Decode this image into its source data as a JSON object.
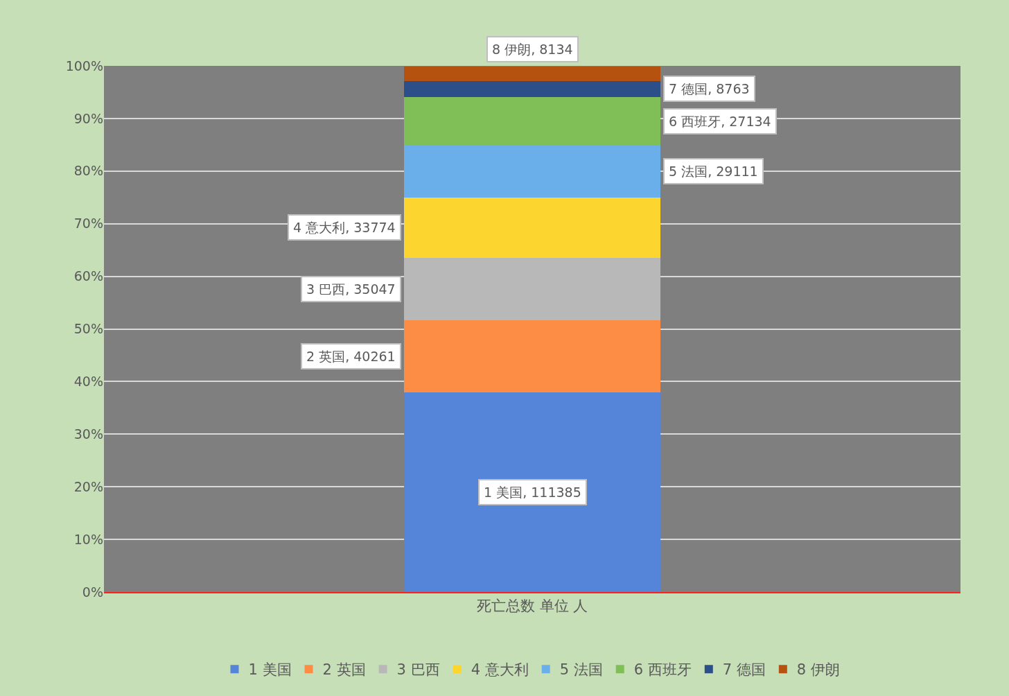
{
  "chart_data": {
    "type": "bar",
    "stacked": true,
    "categories": [
      "死亡总数 单位 人"
    ],
    "series": [
      {
        "name": "1 美国",
        "color": "#5585d8",
        "values": [
          37.9
        ]
      },
      {
        "name": "2 英国",
        "color": "#fd8d45",
        "values": [
          13.7
        ]
      },
      {
        "name": "3 巴西",
        "color": "#b8b8b8",
        "values": [
          11.9
        ]
      },
      {
        "name": "4 意大利",
        "color": "#fdd52f",
        "values": [
          11.5
        ]
      },
      {
        "name": "5 法国",
        "color": "#6aaeea",
        "values": [
          9.9
        ]
      },
      {
        "name": "6 西班牙",
        "color": "#80bf58",
        "values": [
          9.2
        ]
      },
      {
        "name": "7 德国",
        "color": "#2c4f8a",
        "values": [
          3.0
        ]
      },
      {
        "name": "8 伊朗",
        "color": "#b5520f",
        "values": [
          2.8
        ]
      }
    ],
    "annotations": [
      "1 美国, 111385",
      "2 英国, 40261",
      "3 巴西, 35047",
      "4 意大利, 33774",
      "5 法国, 29111",
      "6 西班牙, 27134",
      "7 德国, 8763",
      "8 伊朗, 8134"
    ],
    "ylim": [
      0,
      100
    ],
    "yticks": [
      {
        "value": 0,
        "label": "0%"
      },
      {
        "value": 10,
        "label": "10%"
      },
      {
        "value": 20,
        "label": "20%"
      },
      {
        "value": 30,
        "label": "30%"
      },
      {
        "value": 40,
        "label": "40%"
      },
      {
        "value": 50,
        "label": "50%"
      },
      {
        "value": 60,
        "label": "60%"
      },
      {
        "value": 70,
        "label": "70%"
      },
      {
        "value": 80,
        "label": "80%"
      },
      {
        "value": 90,
        "label": "90%"
      },
      {
        "value": 100,
        "label": "100%"
      }
    ],
    "grid": "y",
    "legend": "bottom"
  }
}
